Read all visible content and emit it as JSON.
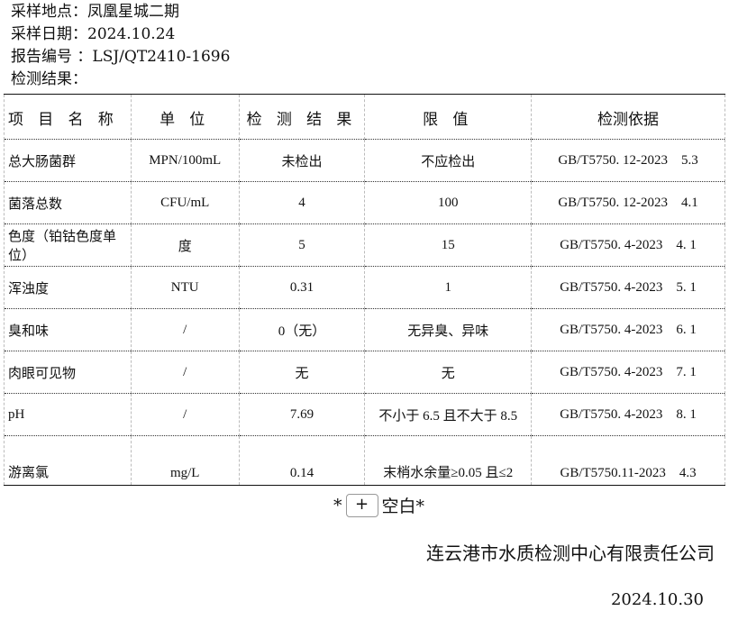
{
  "meta": {
    "location": "采样地点：凤凰星城二期",
    "date": "采样日期：2024.10.24",
    "report_no": "报告编号 ：LSJ/QT2410-1696",
    "results_label": "检测结果："
  },
  "headers": [
    "项 目 名 称",
    "单 位",
    "检 测 结 果",
    "限 值",
    "检测依据"
  ],
  "rows": [
    [
      "总大肠菌群",
      "MPN/100mL",
      "未检出",
      "不应检出",
      "GB/T5750. 12-2023    5.3"
    ],
    [
      "菌落总数",
      "CFU/mL",
      "4",
      "100",
      "GB/T5750. 12-2023    4.1"
    ],
    [
      "色度（铂钴色度单位）",
      "度",
      "5",
      "15",
      "GB/T5750. 4-2023    4. 1"
    ],
    [
      "浑浊度",
      "NTU",
      "0.31",
      "1",
      "GB/T5750. 4-2023    5. 1"
    ],
    [
      "臭和味",
      "/",
      "0（无）",
      "无异臭、异味",
      "GB/T5750. 4-2023    6. 1"
    ],
    [
      "肉眼可见物",
      "/",
      "无",
      "无",
      "GB/T5750. 4-2023    7. 1"
    ],
    [
      "pH",
      "/",
      "7.69",
      "不小于 6.5 且不大于 8.5",
      "GB/T5750. 4-2023    8. 1"
    ],
    [
      "游离氯",
      "mg/L",
      "0.14",
      "末梢水余量≥0.05 且≤2",
      "GB/T5750.11-2023    4.3"
    ]
  ],
  "footer": {
    "star_left": "*",
    "plus": "+",
    "blank": "空白*",
    "company": "连云港市水质检测中心有限责任公司",
    "date": "2024.10.30"
  }
}
